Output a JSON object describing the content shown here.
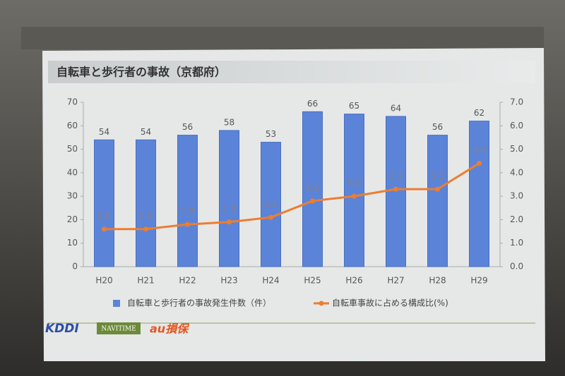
{
  "chart_data": {
    "type": "bar",
    "title": "自転車と歩行者の事故（京都府）",
    "categories": [
      "H20",
      "H21",
      "H22",
      "H23",
      "H24",
      "H25",
      "H26",
      "H27",
      "H28",
      "H29"
    ],
    "series": [
      {
        "name": "自転車と歩行者の事故発生件数（件）",
        "type": "bar",
        "color": "#5b84d8",
        "values": [
          54,
          54,
          56,
          58,
          53,
          66,
          65,
          64,
          56,
          62
        ]
      },
      {
        "name": "自転車事故に占める構成比(%)",
        "type": "line",
        "axis": "y2",
        "color": "#ed7d31",
        "values": [
          1.6,
          1.6,
          1.8,
          1.9,
          2.1,
          2.8,
          3.0,
          3.3,
          3.3,
          4.4
        ],
        "value_labels": [
          "1.6",
          "1.6",
          "1.8",
          "1.9",
          "2.1",
          "2.8",
          "3.0",
          "3.3",
          "3.3",
          "4.4"
        ]
      }
    ],
    "ylim": [
      0,
      70
    ],
    "yticks": [
      0,
      10,
      20,
      30,
      40,
      50,
      60,
      70
    ],
    "y2lim": [
      0,
      7
    ],
    "y2ticks": [
      {
        "value": 0,
        "label": "0.0"
      },
      {
        "value": 1,
        "label": "1.0"
      },
      {
        "value": 2,
        "label": "2.0"
      },
      {
        "value": 3,
        "label": "3.0"
      },
      {
        "value": 4,
        "label": "4.0"
      },
      {
        "value": 5,
        "label": "5.0"
      },
      {
        "value": 6,
        "label": "6.0"
      },
      {
        "value": 7,
        "label": "7.0"
      }
    ],
    "grid": false,
    "legend": "bottom"
  },
  "logos": [
    "KDDI",
    "NAVITIME",
    "au損保"
  ]
}
